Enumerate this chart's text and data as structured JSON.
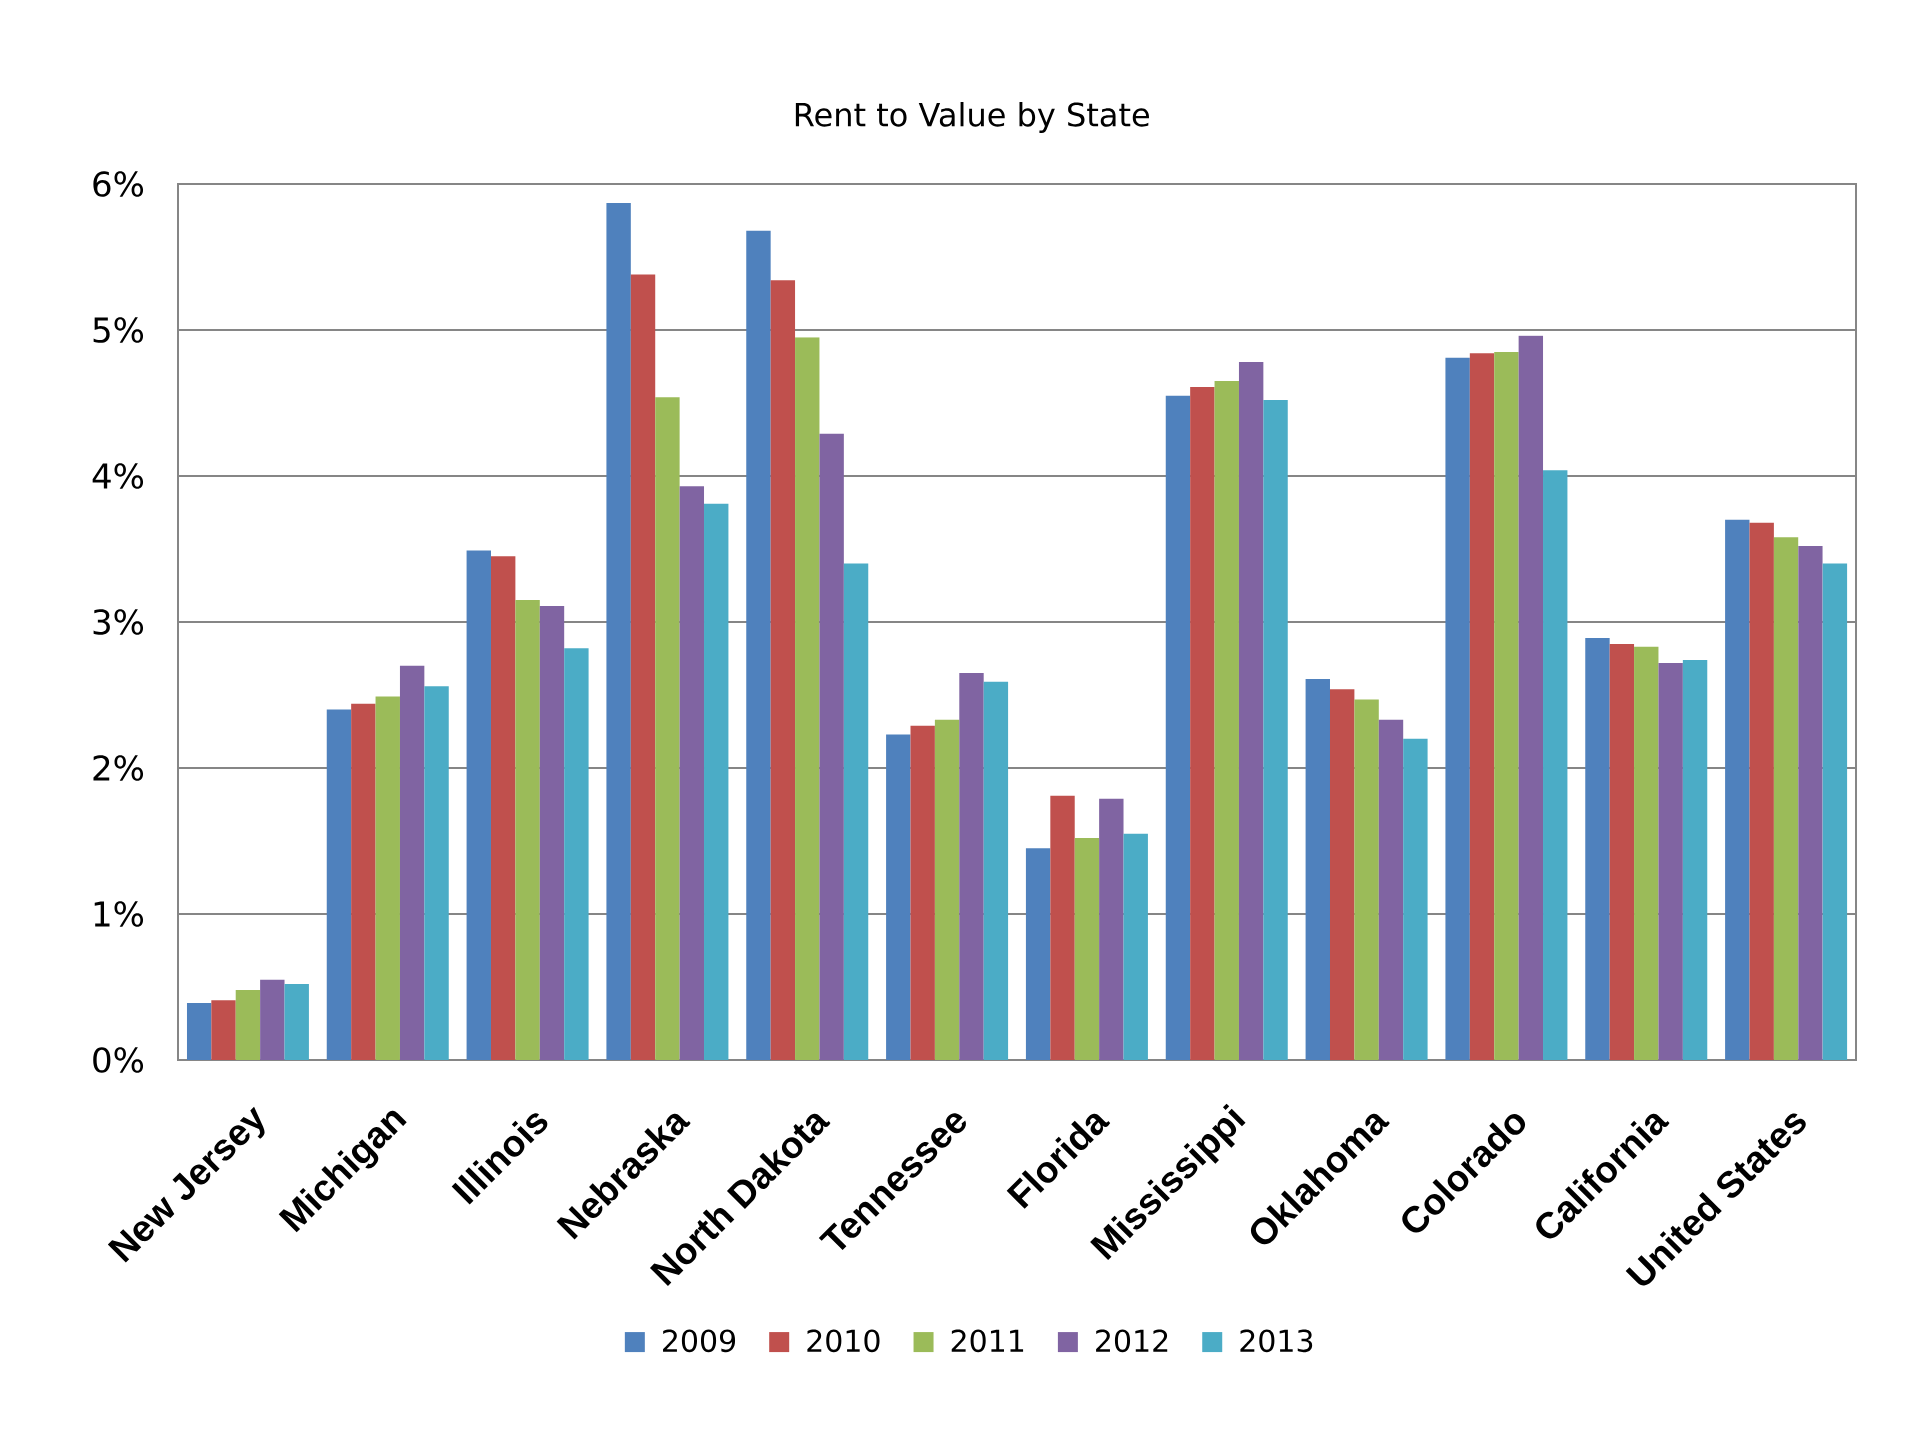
{
  "chart_data": {
    "type": "bar",
    "title": "Rent to Value by State",
    "categories": [
      "New Jersey",
      "Michigan",
      "Illinois",
      "Nebraska",
      "North Dakota",
      "Tennessee",
      "Florida",
      "Mississippi",
      "Oklahoma",
      "Colorado",
      "California",
      "United States"
    ],
    "series": [
      {
        "name": "2009",
        "color": "#4f81bd",
        "values": [
          0.39,
          2.4,
          3.49,
          5.87,
          5.68,
          2.23,
          1.45,
          4.55,
          2.61,
          4.81,
          2.89,
          3.7
        ]
      },
      {
        "name": "2010",
        "color": "#c0504d",
        "values": [
          0.41,
          2.44,
          3.45,
          5.38,
          5.34,
          2.29,
          1.81,
          4.61,
          2.54,
          4.84,
          2.85,
          3.68
        ]
      },
      {
        "name": "2011",
        "color": "#9bbb59",
        "values": [
          0.48,
          2.49,
          3.15,
          4.54,
          4.95,
          2.33,
          1.52,
          4.65,
          2.47,
          4.85,
          2.83,
          3.58
        ]
      },
      {
        "name": "2012",
        "color": "#8064a2",
        "values": [
          0.55,
          2.7,
          3.11,
          3.93,
          4.29,
          2.65,
          1.79,
          4.78,
          2.33,
          4.96,
          2.72,
          3.52
        ]
      },
      {
        "name": "2013",
        "color": "#4bacc6",
        "values": [
          0.52,
          2.56,
          2.82,
          3.81,
          3.4,
          2.59,
          1.55,
          4.52,
          2.2,
          4.04,
          2.74,
          3.4
        ]
      }
    ],
    "ylim": [
      0,
      6
    ],
    "yticks": [
      {
        "value": 0,
        "label": "0%"
      },
      {
        "value": 1,
        "label": "1%"
      },
      {
        "value": 2,
        "label": "2%"
      },
      {
        "value": 3,
        "label": "3%"
      },
      {
        "value": 4,
        "label": "4%"
      },
      {
        "value": 5,
        "label": "5%"
      },
      {
        "value": 6,
        "label": "6%"
      }
    ],
    "grid": "y",
    "legend": "bottom"
  }
}
